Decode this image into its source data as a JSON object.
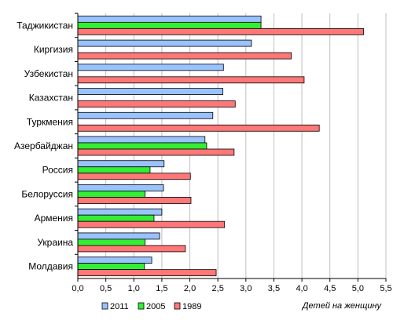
{
  "chart_data": {
    "type": "bar",
    "orientation": "horizontal",
    "categories": [
      "Таджикистан",
      "Киргизия",
      "Узбекистан",
      "Казахстан",
      "Туркмения",
      "Азербайджан",
      "Россия",
      "Белоруссия",
      "Армения",
      "Украина",
      "Молдавия"
    ],
    "series": [
      {
        "name": "2011",
        "color": "#99c2ff",
        "values": [
          3.27,
          3.1,
          2.6,
          2.59,
          2.41,
          2.27,
          1.54,
          1.53,
          1.5,
          1.46,
          1.32
        ]
      },
      {
        "name": "2005",
        "color": "#33ee33",
        "values": [
          3.27,
          null,
          null,
          null,
          null,
          2.3,
          1.29,
          1.2,
          1.36,
          1.2,
          1.19
        ]
      },
      {
        "name": "1989",
        "color": "#ff7777",
        "values": [
          5.1,
          3.81,
          4.04,
          2.81,
          4.31,
          2.79,
          2.01,
          2.02,
          2.62,
          1.92,
          2.47
        ]
      }
    ],
    "xlabel": "Детей на женщину",
    "xlim": [
      0,
      5.5
    ],
    "xticks": [
      0,
      0.5,
      1,
      1.5,
      2,
      2.5,
      3,
      3.5,
      4,
      4.5,
      5,
      5.5
    ],
    "xtick_labels": [
      "0,0",
      "0,5",
      "1,0",
      "1,5",
      "2,0",
      "2,5",
      "3,0",
      "3,5",
      "4,0",
      "4,5",
      "5,0",
      "5,5"
    ],
    "grid": "vertical",
    "legend_position": "bottom"
  }
}
